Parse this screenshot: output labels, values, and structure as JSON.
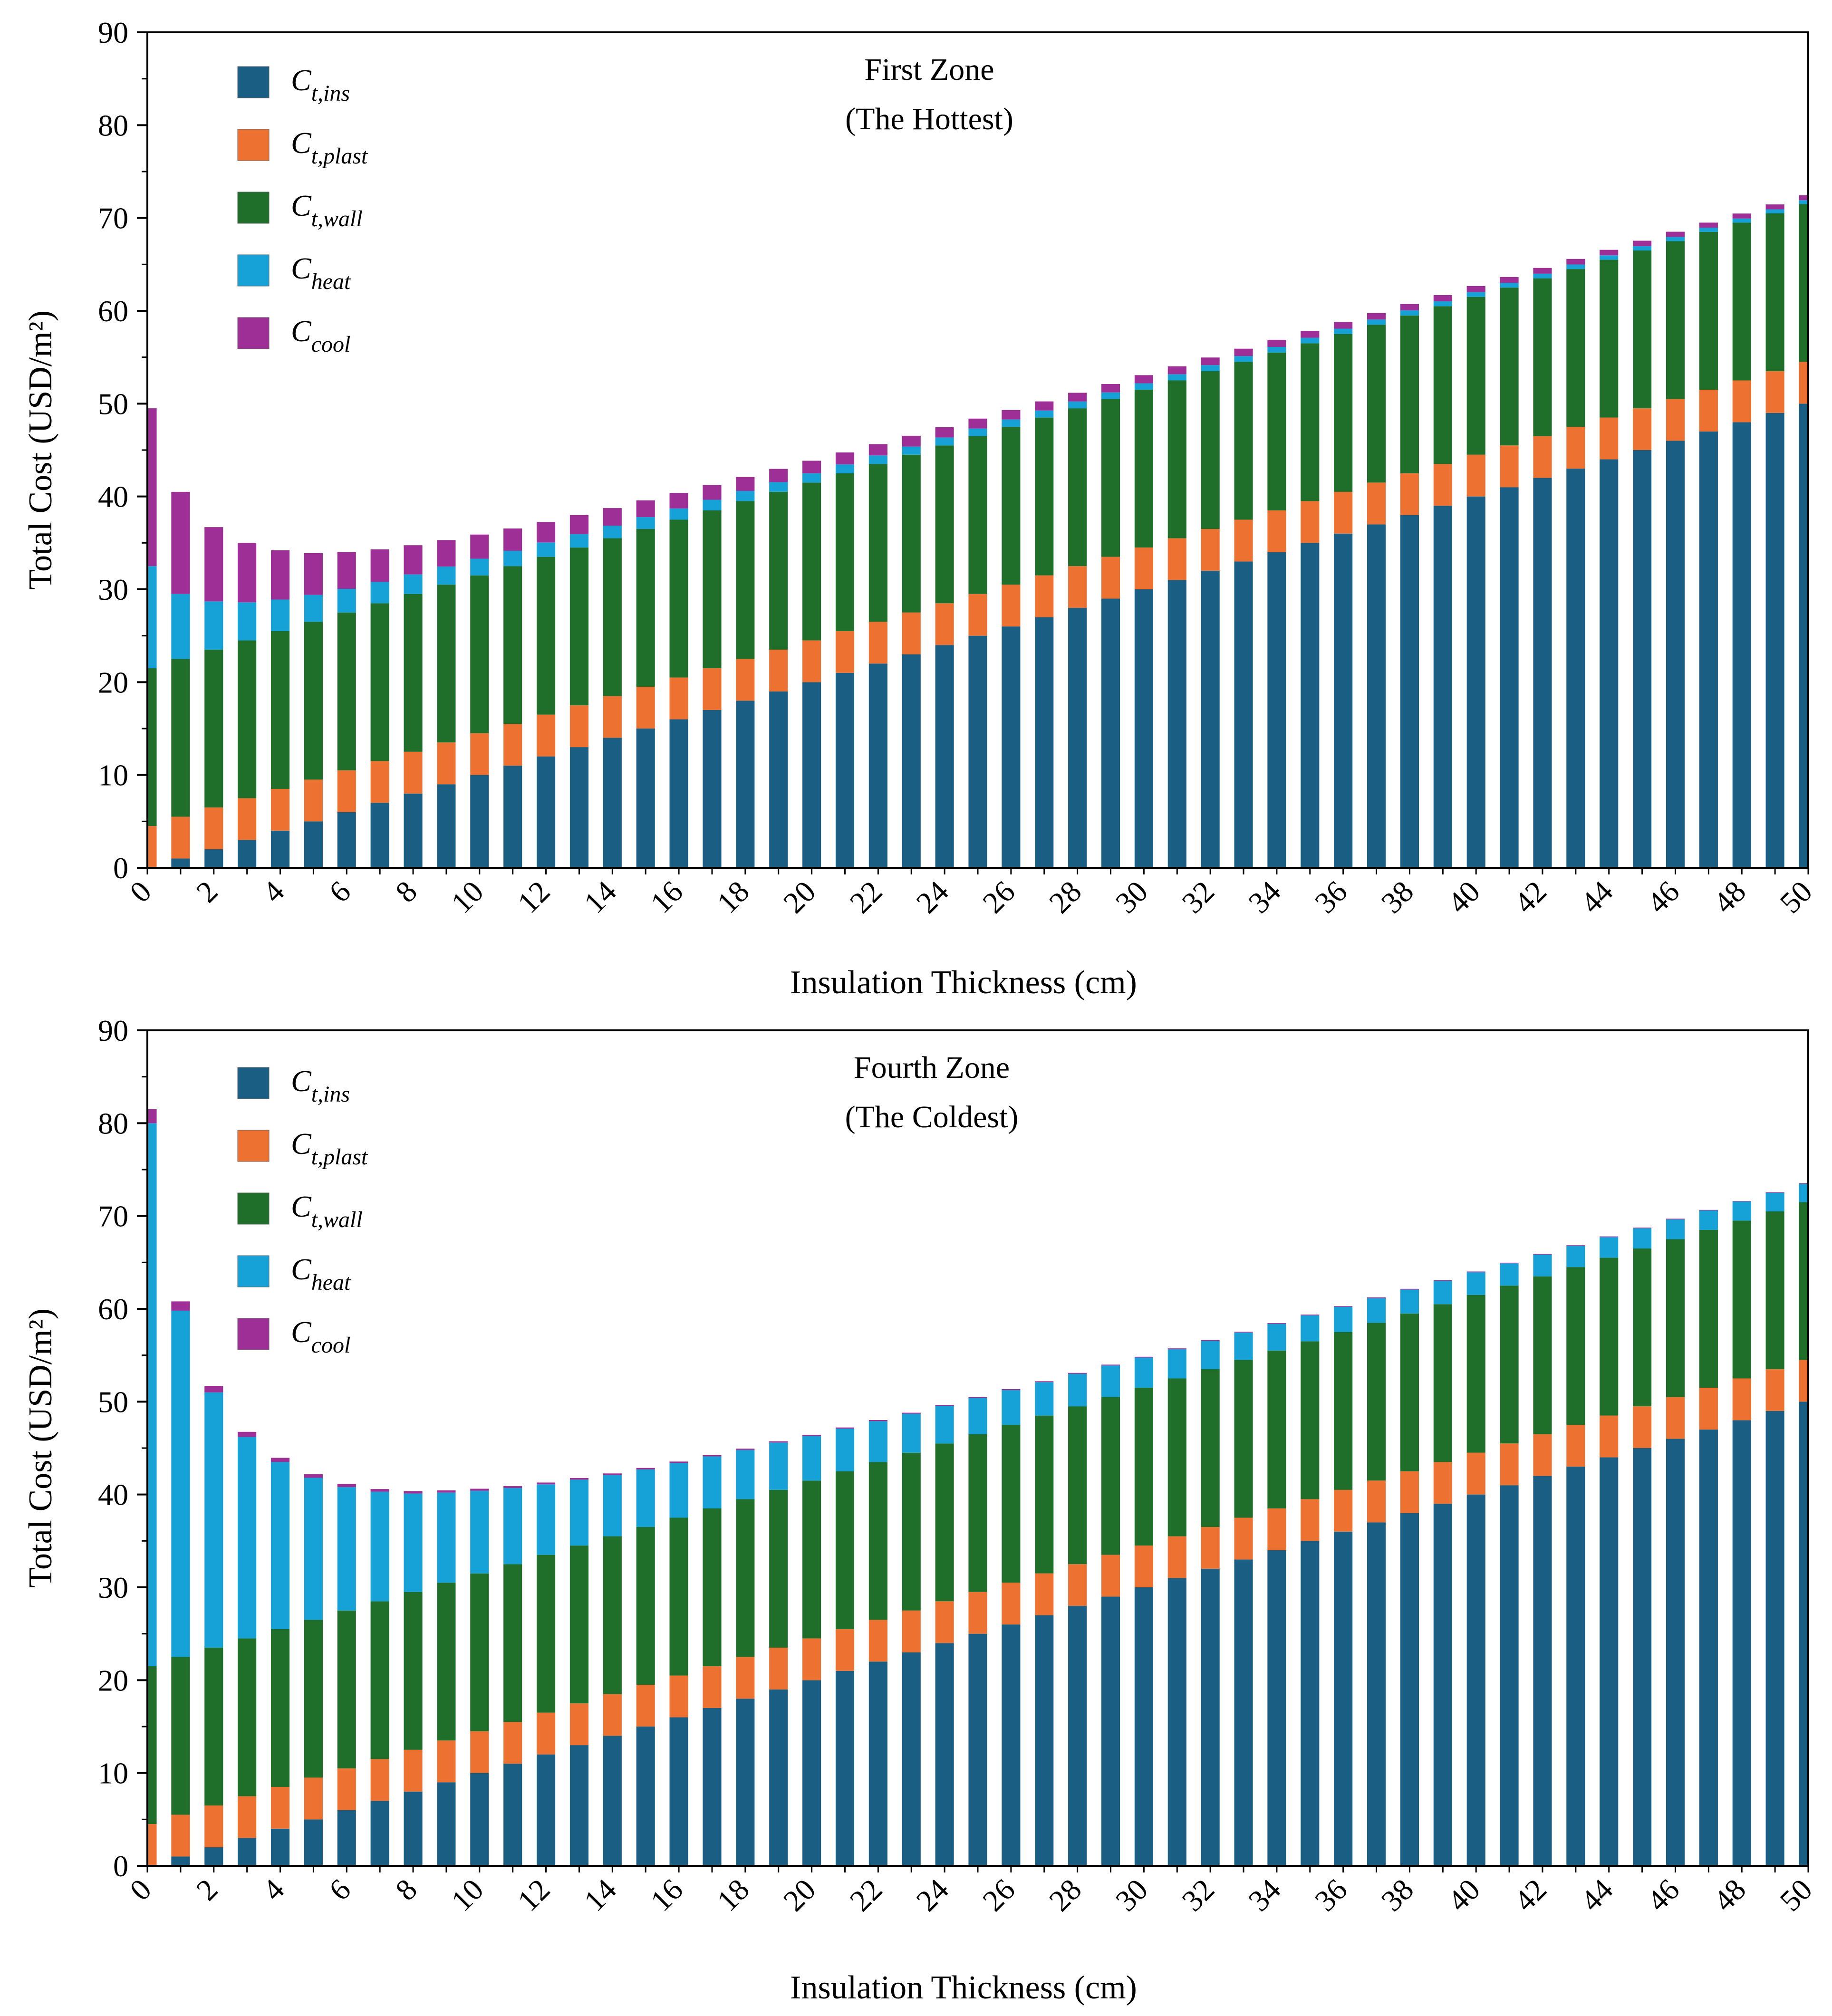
{
  "colors": {
    "ins": "#1a5e84",
    "plast": "#ed7232",
    "wall": "#1f6e2a",
    "heat": "#16a2d6",
    "cool": "#9d2f97"
  },
  "chart_data": [
    {
      "type": "bar",
      "stacked": true,
      "title_line1": "First Zone",
      "title_line2": "(The Hottest)",
      "xlabel": "Insulation Thickness (cm)",
      "ylabel": "Total Cost (USD/m²)",
      "ylim": [
        0,
        90
      ],
      "xlim": [
        0,
        50
      ],
      "yticks": [
        "0",
        "10",
        "20",
        "30",
        "40",
        "50",
        "60",
        "70",
        "80",
        "90"
      ],
      "xticks": [
        "0",
        "2",
        "4",
        "6",
        "8",
        "10",
        "12",
        "14",
        "16",
        "18",
        "20",
        "22",
        "24",
        "26",
        "28",
        "30",
        "32",
        "34",
        "36",
        "38",
        "40",
        "42",
        "44",
        "46",
        "48",
        "50"
      ],
      "legend": [
        {
          "key": "ins",
          "base": "C",
          "sub": "t,ins"
        },
        {
          "key": "plast",
          "base": "C",
          "sub": "t,plast"
        },
        {
          "key": "wall",
          "base": "C",
          "sub": "t,wall"
        },
        {
          "key": "heat",
          "base": "C",
          "sub": "heat"
        },
        {
          "key": "cool",
          "base": "C",
          "sub": "cool"
        }
      ],
      "x": [
        0,
        1,
        2,
        3,
        4,
        5,
        6,
        7,
        8,
        9,
        10,
        11,
        12,
        13,
        14,
        15,
        16,
        17,
        18,
        19,
        20,
        21,
        22,
        23,
        24,
        25,
        26,
        27,
        28,
        29,
        30,
        31,
        32,
        33,
        34,
        35,
        36,
        37,
        38,
        39,
        40,
        41,
        42,
        43,
        44,
        45,
        46,
        47,
        48,
        49,
        50
      ],
      "series": [
        {
          "name": "C_t,ins",
          "key": "ins",
          "values": [
            0,
            1,
            2,
            3,
            4,
            5,
            6,
            7,
            8,
            9,
            10,
            11,
            12,
            13,
            14,
            15,
            16,
            17,
            18,
            19,
            20,
            21,
            22,
            23,
            24,
            25,
            26,
            27,
            28,
            29,
            30,
            31,
            32,
            33,
            34,
            35,
            36,
            37,
            38,
            39,
            40,
            41,
            42,
            43,
            44,
            45,
            46,
            47,
            48,
            49,
            50
          ]
        },
        {
          "name": "C_t,plast",
          "key": "plast",
          "values": [
            4.5,
            4.5,
            4.5,
            4.5,
            4.5,
            4.5,
            4.5,
            4.5,
            4.5,
            4.5,
            4.5,
            4.5,
            4.5,
            4.5,
            4.5,
            4.5,
            4.5,
            4.5,
            4.5,
            4.5,
            4.5,
            4.5,
            4.5,
            4.5,
            4.5,
            4.5,
            4.5,
            4.5,
            4.5,
            4.5,
            4.5,
            4.5,
            4.5,
            4.5,
            4.5,
            4.5,
            4.5,
            4.5,
            4.5,
            4.5,
            4.5,
            4.5,
            4.5,
            4.5,
            4.5,
            4.5,
            4.5,
            4.5,
            4.5,
            4.5,
            4.5
          ]
        },
        {
          "name": "C_t,wall",
          "key": "wall",
          "values": [
            17,
            17,
            17,
            17,
            17,
            17,
            17,
            17,
            17,
            17,
            17,
            17,
            17,
            17,
            17,
            17,
            17,
            17,
            17,
            17,
            17,
            17,
            17,
            17,
            17,
            17,
            17,
            17,
            17,
            17,
            17,
            17,
            17,
            17,
            17,
            17,
            17,
            17,
            17,
            17,
            17,
            17,
            17,
            17,
            17,
            17,
            17,
            17,
            17,
            17,
            17
          ]
        },
        {
          "name": "C_heat",
          "key": "heat",
          "values": [
            11,
            7,
            5.2,
            4.1,
            3.4,
            2.9,
            2.55,
            2.3,
            2.1,
            1.95,
            1.8,
            1.65,
            1.55,
            1.45,
            1.35,
            1.28,
            1.21,
            1.15,
            1.1,
            1.05,
            1.0,
            0.96,
            0.92,
            0.88,
            0.85,
            0.82,
            0.79,
            0.76,
            0.73,
            0.71,
            0.69,
            0.67,
            0.65,
            0.63,
            0.61,
            0.59,
            0.58,
            0.56,
            0.55,
            0.53,
            0.52,
            0.51,
            0.5,
            0.49,
            0.48,
            0.47,
            0.46,
            0.45,
            0.44,
            0.43,
            0.42
          ]
        },
        {
          "name": "C_cool",
          "key": "cool",
          "values": [
            17,
            11,
            8,
            6.4,
            5.3,
            4.5,
            3.95,
            3.5,
            3.15,
            2.85,
            2.6,
            2.4,
            2.2,
            2.05,
            1.9,
            1.8,
            1.68,
            1.58,
            1.5,
            1.42,
            1.35,
            1.28,
            1.22,
            1.16,
            1.11,
            1.07,
            1.02,
            0.98,
            0.94,
            0.91,
            0.88,
            0.85,
            0.82,
            0.79,
            0.77,
            0.75,
            0.72,
            0.7,
            0.68,
            0.66,
            0.65,
            0.63,
            0.62,
            0.6,
            0.59,
            0.58,
            0.56,
            0.55,
            0.54,
            0.53,
            0.52
          ]
        }
      ]
    },
    {
      "type": "bar",
      "stacked": true,
      "title_line1": "Fourth Zone",
      "title_line2": "(The Coldest)",
      "xlabel": "Insulation Thickness (cm)",
      "ylabel": "Total Cost (USD/m²)",
      "ylim": [
        0,
        90
      ],
      "xlim": [
        0,
        50
      ],
      "yticks": [
        "0",
        "10",
        "20",
        "30",
        "40",
        "50",
        "60",
        "70",
        "80",
        "90"
      ],
      "xticks": [
        "0",
        "2",
        "4",
        "6",
        "8",
        "10",
        "12",
        "14",
        "16",
        "18",
        "20",
        "22",
        "24",
        "26",
        "28",
        "30",
        "32",
        "34",
        "36",
        "38",
        "40",
        "42",
        "44",
        "46",
        "48",
        "50"
      ],
      "legend": [
        {
          "key": "ins",
          "base": "C",
          "sub": "t,ins"
        },
        {
          "key": "plast",
          "base": "C",
          "sub": "t,plast"
        },
        {
          "key": "wall",
          "base": "C",
          "sub": "t,wall"
        },
        {
          "key": "heat",
          "base": "C",
          "sub": "heat"
        },
        {
          "key": "cool",
          "base": "C",
          "sub": "cool"
        }
      ],
      "x": [
        0,
        1,
        2,
        3,
        4,
        5,
        6,
        7,
        8,
        9,
        10,
        11,
        12,
        13,
        14,
        15,
        16,
        17,
        18,
        19,
        20,
        21,
        22,
        23,
        24,
        25,
        26,
        27,
        28,
        29,
        30,
        31,
        32,
        33,
        34,
        35,
        36,
        37,
        38,
        39,
        40,
        41,
        42,
        43,
        44,
        45,
        46,
        47,
        48,
        49,
        50
      ],
      "series": [
        {
          "name": "C_t,ins",
          "key": "ins",
          "values": [
            0,
            1,
            2,
            3,
            4,
            5,
            6,
            7,
            8,
            9,
            10,
            11,
            12,
            13,
            14,
            15,
            16,
            17,
            18,
            19,
            20,
            21,
            22,
            23,
            24,
            25,
            26,
            27,
            28,
            29,
            30,
            31,
            32,
            33,
            34,
            35,
            36,
            37,
            38,
            39,
            40,
            41,
            42,
            43,
            44,
            45,
            46,
            47,
            48,
            49,
            50
          ]
        },
        {
          "name": "C_t,plast",
          "key": "plast",
          "values": [
            4.5,
            4.5,
            4.5,
            4.5,
            4.5,
            4.5,
            4.5,
            4.5,
            4.5,
            4.5,
            4.5,
            4.5,
            4.5,
            4.5,
            4.5,
            4.5,
            4.5,
            4.5,
            4.5,
            4.5,
            4.5,
            4.5,
            4.5,
            4.5,
            4.5,
            4.5,
            4.5,
            4.5,
            4.5,
            4.5,
            4.5,
            4.5,
            4.5,
            4.5,
            4.5,
            4.5,
            4.5,
            4.5,
            4.5,
            4.5,
            4.5,
            4.5,
            4.5,
            4.5,
            4.5,
            4.5,
            4.5,
            4.5,
            4.5,
            4.5,
            4.5
          ]
        },
        {
          "name": "C_t,wall",
          "key": "wall",
          "values": [
            17,
            17,
            17,
            17,
            17,
            17,
            17,
            17,
            17,
            17,
            17,
            17,
            17,
            17,
            17,
            17,
            17,
            17,
            17,
            17,
            17,
            17,
            17,
            17,
            17,
            17,
            17,
            17,
            17,
            17,
            17,
            17,
            17,
            17,
            17,
            17,
            17,
            17,
            17,
            17,
            17,
            17,
            17,
            17,
            17,
            17,
            17,
            17,
            17,
            17,
            17
          ]
        },
        {
          "name": "C_heat",
          "key": "heat",
          "values": [
            58.5,
            37.3,
            27.5,
            21.7,
            18.0,
            15.3,
            13.3,
            11.8,
            10.6,
            9.7,
            8.9,
            8.2,
            7.6,
            7.1,
            6.6,
            6.2,
            5.9,
            5.6,
            5.3,
            5.1,
            4.8,
            4.6,
            4.4,
            4.2,
            4.05,
            3.9,
            3.75,
            3.6,
            3.5,
            3.4,
            3.25,
            3.15,
            3.05,
            2.95,
            2.88,
            2.8,
            2.72,
            2.65,
            2.58,
            2.51,
            2.45,
            2.4,
            2.34,
            2.28,
            2.23,
            2.18,
            2.14,
            2.1,
            2.05,
            2.0,
            1.96
          ]
        },
        {
          "name": "C_cool",
          "key": "cool",
          "values": [
            1.5,
            1.0,
            0.7,
            0.55,
            0.45,
            0.38,
            0.33,
            0.29,
            0.26,
            0.24,
            0.22,
            0.2,
            0.19,
            0.18,
            0.17,
            0.16,
            0.15,
            0.14,
            0.14,
            0.13,
            0.13,
            0.12,
            0.12,
            0.11,
            0.11,
            0.1,
            0.1,
            0.1,
            0.1,
            0.09,
            0.09,
            0.09,
            0.09,
            0.08,
            0.08,
            0.08,
            0.08,
            0.08,
            0.08,
            0.07,
            0.07,
            0.07,
            0.07,
            0.07,
            0.07,
            0.07,
            0.07,
            0.06,
            0.06,
            0.06,
            0.06
          ]
        }
      ]
    }
  ]
}
